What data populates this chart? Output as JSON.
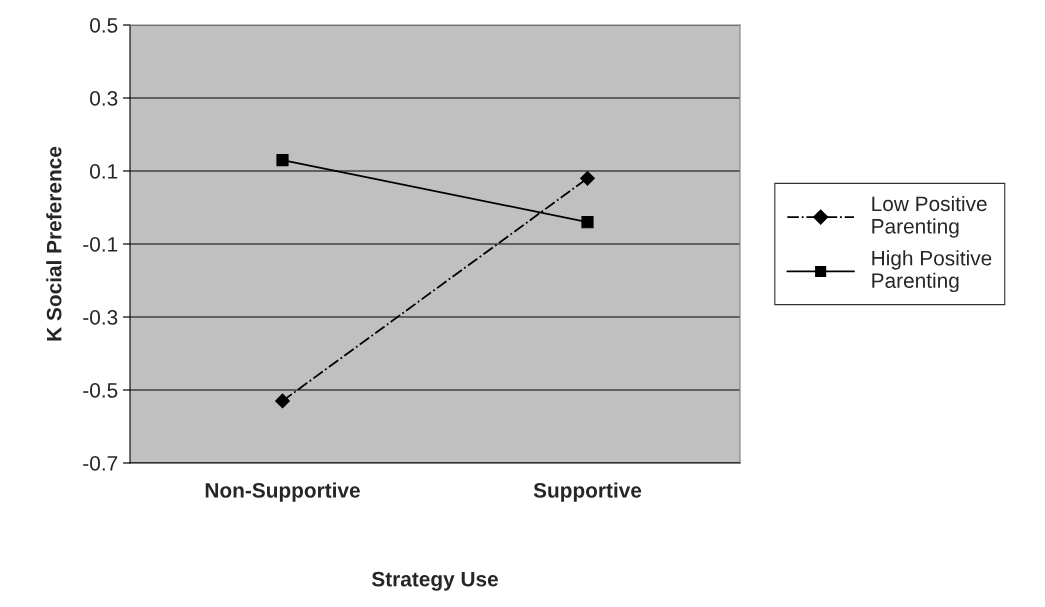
{
  "chart_data": {
    "type": "line",
    "xlabel": "Strategy Use",
    "ylabel": "K Social Preference",
    "categories": [
      "Non-Supportive",
      "Supportive"
    ],
    "series": [
      {
        "name": "Low Positive Parenting",
        "color": "#000000",
        "values": [
          -0.53,
          0.08
        ],
        "marker": "diamond",
        "line_style": "dashdot"
      },
      {
        "name": "High Positive Parenting",
        "color": "#000000",
        "values": [
          0.13,
          -0.04
        ],
        "marker": "square",
        "line_style": "solid"
      }
    ],
    "ylim": [
      -0.7,
      0.5
    ],
    "yticks": [
      -0.7,
      -0.5,
      -0.3,
      -0.1,
      0.1,
      0.3,
      0.5
    ],
    "grid": "y",
    "legend": "right"
  }
}
